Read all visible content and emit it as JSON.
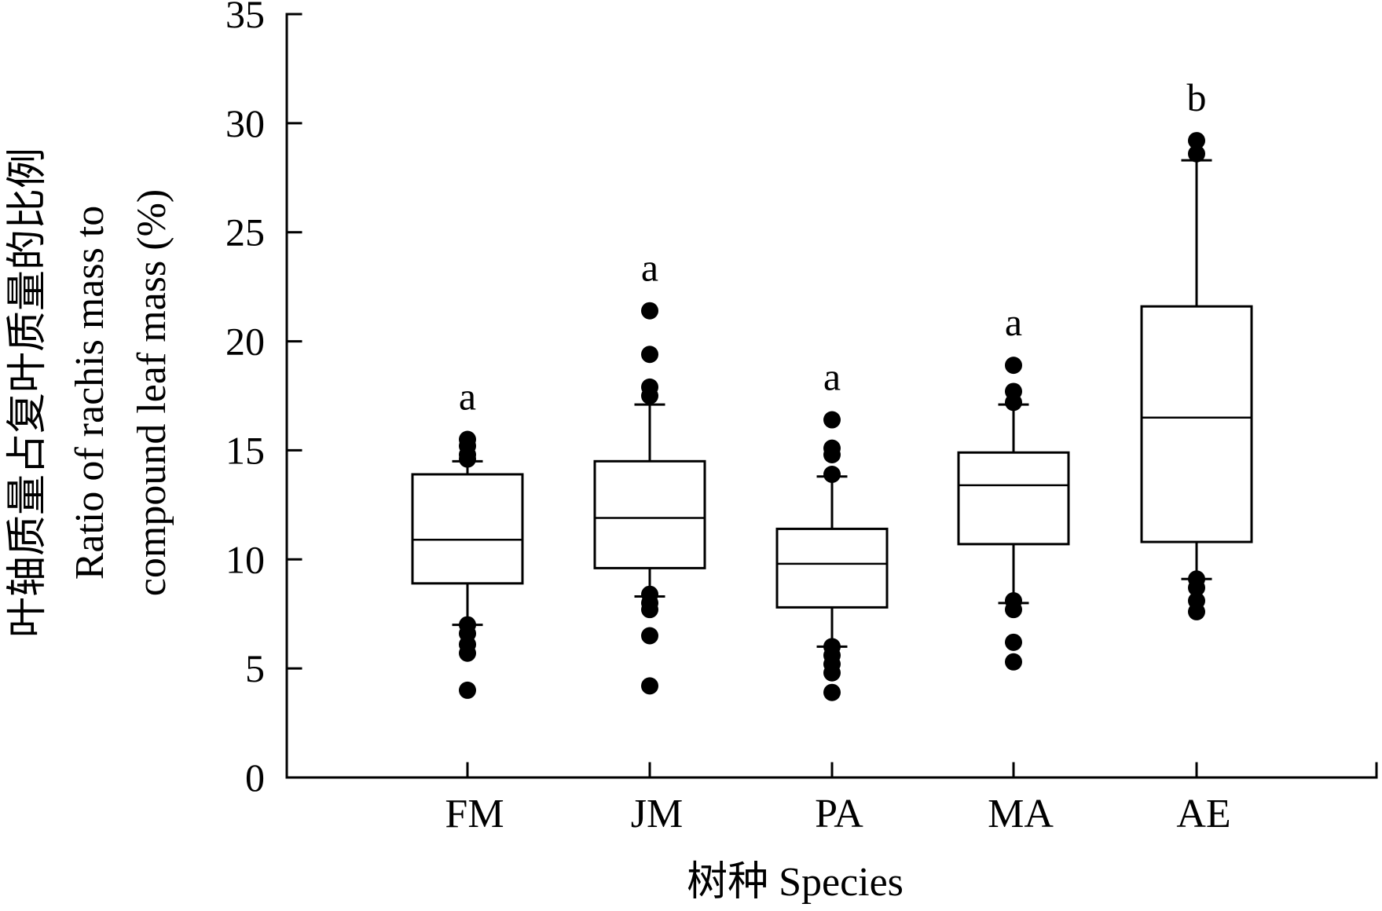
{
  "chart_data": {
    "type": "box",
    "xlabel": "树种 Species",
    "ylabel_zh": "叶轴质量占复叶质量的比例",
    "ylabel_en_line1": "Ratio of rachis mass to",
    "ylabel_en_line2": "compound leaf mass (%)",
    "ylim": [
      0,
      35
    ],
    "yticks": [
      0,
      5,
      10,
      15,
      20,
      25,
      30,
      35
    ],
    "categories": [
      "FM",
      "JM",
      "PA",
      "MA",
      "AE"
    ],
    "boxes": [
      {
        "category": "FM",
        "whisker_low": 7.0,
        "q1": 8.9,
        "median": 10.9,
        "q3": 13.9,
        "whisker_high": 14.5,
        "outliers": [
          15.5,
          15.2,
          14.8,
          14.6,
          7.0,
          6.6,
          6.1,
          5.7,
          4.0
        ],
        "letter": "a"
      },
      {
        "category": "JM",
        "whisker_low": 8.3,
        "q1": 9.6,
        "median": 11.9,
        "q3": 14.5,
        "whisker_high": 17.1,
        "outliers": [
          21.4,
          19.4,
          17.9,
          17.5,
          8.4,
          8.0,
          7.7,
          6.5,
          4.2
        ],
        "letter": "a"
      },
      {
        "category": "PA",
        "whisker_low": 6.0,
        "q1": 7.8,
        "median": 9.8,
        "q3": 11.4,
        "whisker_high": 13.8,
        "outliers": [
          16.4,
          15.1,
          14.8,
          13.9,
          6.0,
          5.6,
          5.2,
          4.8,
          3.9
        ],
        "letter": "a"
      },
      {
        "category": "MA",
        "whisker_low": 8.0,
        "q1": 10.7,
        "median": 13.4,
        "q3": 14.9,
        "whisker_high": 17.1,
        "outliers": [
          18.9,
          17.7,
          17.2,
          8.1,
          7.7,
          6.2,
          5.3
        ],
        "letter": "a"
      },
      {
        "category": "AE",
        "whisker_low": 9.1,
        "q1": 10.8,
        "median": 16.5,
        "q3": 21.6,
        "whisker_high": 28.3,
        "outliers": [
          29.2,
          28.6,
          9.1,
          8.7,
          8.1,
          7.6
        ],
        "letter": "b"
      }
    ]
  }
}
